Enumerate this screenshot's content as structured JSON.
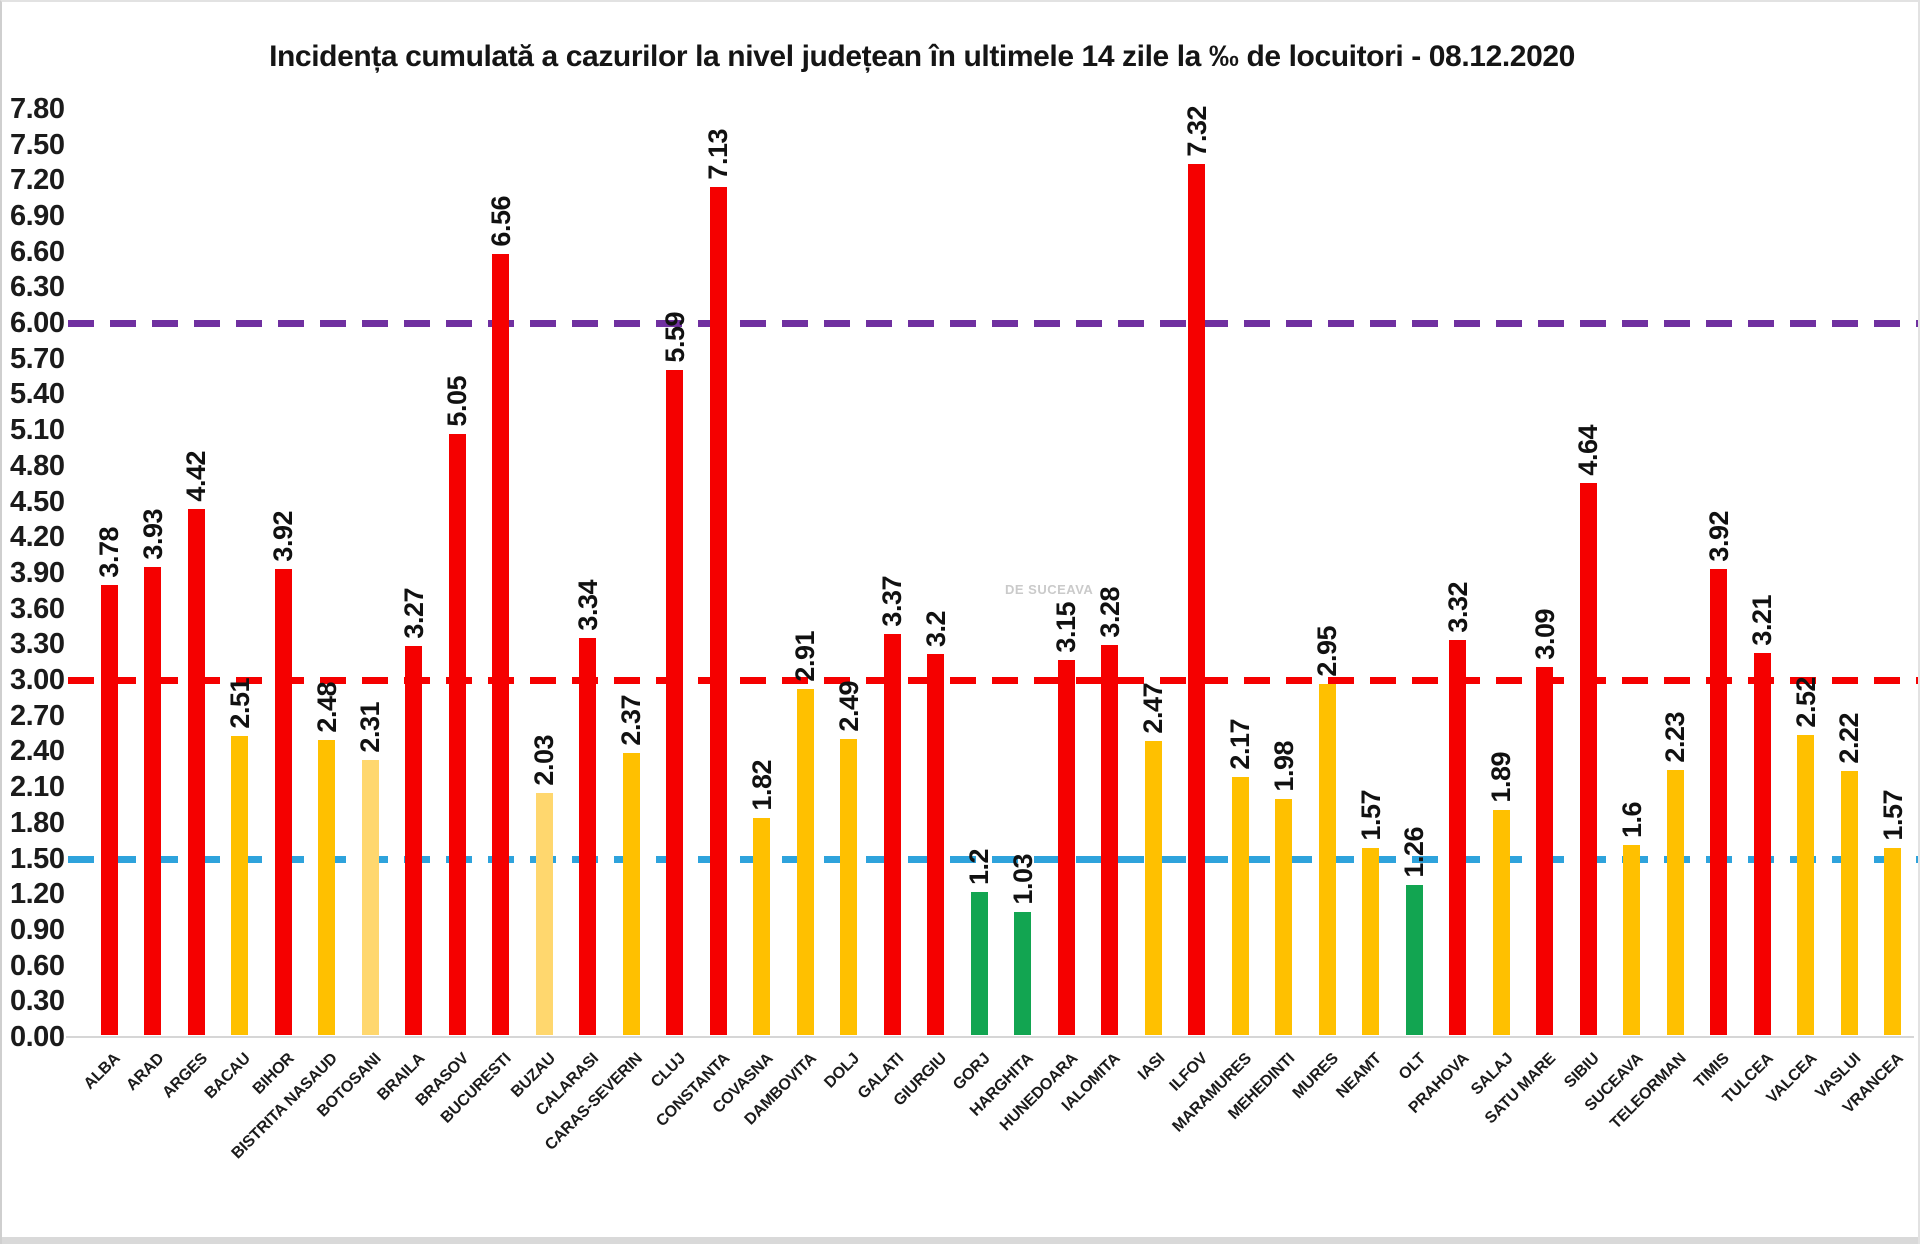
{
  "title": "Incidența cumulată a cazurilor la nivel județean în ultimele 14 zile la ‰ de locuitori - 08.12.2020",
  "watermark": "DE SUCEAVA",
  "chart_data": {
    "type": "bar",
    "title": "Incidența cumulată a cazurilor la nivel județean în ultimele 14 zile la ‰ de locuitori - 08.12.2020",
    "xlabel": "",
    "ylabel": "",
    "grid": false,
    "legend": false,
    "y_axis": {
      "min": 0,
      "max": 7.8,
      "step": 0.3,
      "tick_labels": [
        "7.80",
        "7.50",
        "7.20",
        "6.90",
        "6.60",
        "6.30",
        "6.00",
        "5.70",
        "5.40",
        "5.10",
        "4.80",
        "4.50",
        "4.20",
        "3.90",
        "3.60",
        "3.30",
        "3.00",
        "2.70",
        "2.40",
        "2.10",
        "1.80",
        "1.50",
        "1.20",
        "0.90",
        "0.60",
        "0.30",
        "0.00"
      ]
    },
    "categories": [
      "ALBA",
      "ARAD",
      "ARGES",
      "BACAU",
      "BIHOR",
      "BISTRITA NASAUD",
      "BOTOSANI",
      "BRAILA",
      "BRASOV",
      "BUCURESTI",
      "BUZAU",
      "CALARASI",
      "CARAS-SEVERIN",
      "CLUJ",
      "CONSTANTA",
      "COVASNA",
      "DAMBOVITA",
      "DOLJ",
      "GALATI",
      "GIURGIU",
      "GORJ",
      "HARGHITA",
      "HUNEDOARA",
      "IALOMITA",
      "IASI",
      "ILFOV",
      "MARAMURES",
      "MEHEDINTI",
      "MURES",
      "NEAMT",
      "OLT",
      "PRAHOVA",
      "SALAJ",
      "SATU MARE",
      "SIBIU",
      "SUCEAVA",
      "TELEORMAN",
      "TIMIS",
      "TULCEA",
      "VALCEA",
      "VASLUI",
      "VRANCEA"
    ],
    "values": [
      3.78,
      3.93,
      4.42,
      2.51,
      3.92,
      2.48,
      2.31,
      3.27,
      5.05,
      6.56,
      2.03,
      3.34,
      2.37,
      5.59,
      7.13,
      1.82,
      2.91,
      2.49,
      3.37,
      3.2,
      1.2,
      1.03,
      3.15,
      3.28,
      2.47,
      7.32,
      2.17,
      1.98,
      2.95,
      1.57,
      1.26,
      3.32,
      1.89,
      3.09,
      4.64,
      1.6,
      2.23,
      3.92,
      3.21,
      2.52,
      2.22,
      1.57
    ],
    "value_labels": [
      "3.78",
      "3.93",
      "4.42",
      "2.51",
      "3.92",
      "2.48",
      "2.31",
      "3.27",
      "5.05",
      "6.56",
      "2.03",
      "3.34",
      "2.37",
      "5.59",
      "7.13",
      "1.82",
      "2.91",
      "2.49",
      "3.37",
      "3.2",
      "1.2",
      "1.03",
      "3.15",
      "3.28",
      "2.47",
      "7.32",
      "2.17",
      "1.98",
      "2.95",
      "1.57",
      "1.26",
      "3.32",
      "1.89",
      "3.09",
      "4.64",
      "1.6",
      "2.23",
      "3.92",
      "3.21",
      "2.52",
      "2.22",
      "1.57"
    ],
    "bar_colors": [
      "red",
      "red",
      "red",
      "gold",
      "red",
      "gold",
      "pale_yellow",
      "red",
      "red",
      "red",
      "pale_yellow",
      "red",
      "gold",
      "red",
      "red",
      "gold",
      "gold",
      "gold",
      "red",
      "red",
      "green",
      "green",
      "red",
      "red",
      "gold",
      "red",
      "gold",
      "gold",
      "gold",
      "gold",
      "green",
      "red",
      "gold",
      "red",
      "red",
      "gold",
      "gold",
      "red",
      "red",
      "gold",
      "gold",
      "gold"
    ],
    "palette": {
      "red": "#F50000",
      "gold": "#FFC000",
      "pale_yellow": "#FFD76E",
      "green": "#12A551"
    },
    "reference_lines": [
      {
        "label": "6.00",
        "value": 6,
        "color": "#7030A0",
        "style": "dashed"
      },
      {
        "label": "3.00",
        "value": 3,
        "color": "#F50000",
        "style": "dashed"
      },
      {
        "label": "1.50",
        "value": 1.5,
        "color": "#2EA3DC",
        "style": "dashed"
      }
    ]
  }
}
